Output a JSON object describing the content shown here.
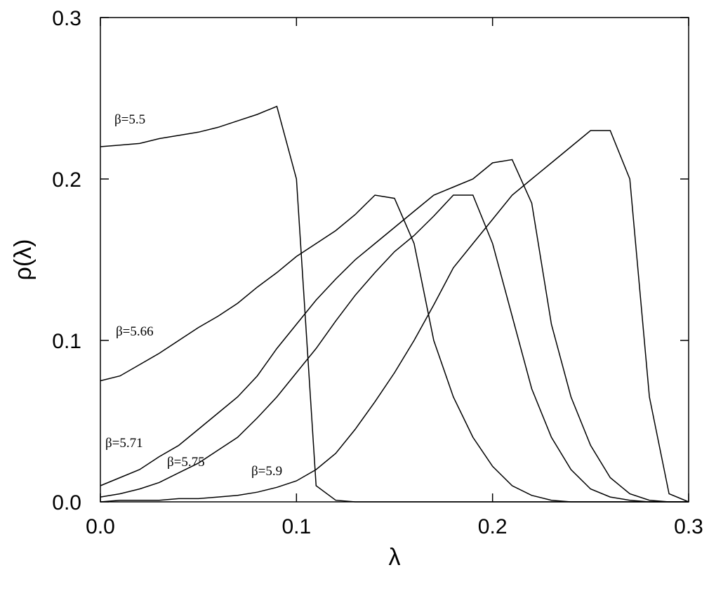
{
  "chart_data": {
    "type": "line",
    "x_label": "λ",
    "y_label": "ρ(λ)",
    "x": [
      0,
      0.01,
      0.02,
      0.03,
      0.04,
      0.05,
      0.06,
      0.07,
      0.08,
      0.09,
      0.1,
      0.11,
      0.12,
      0.13,
      0.14,
      0.15,
      0.16,
      0.17,
      0.18,
      0.19,
      0.2,
      0.21,
      0.22,
      0.23,
      0.24,
      0.25,
      0.26,
      0.27,
      0.28,
      0.29,
      0.3
    ],
    "xlim": [
      0,
      0.3
    ],
    "ylim": [
      0,
      0.3
    ],
    "xticks": [
      {
        "value": 0,
        "label": "0.0"
      },
      0.1,
      0.2,
      0.3
    ],
    "yticks": [
      {
        "value": 0,
        "label": "0.0"
      },
      0.1,
      0.2,
      0.3
    ],
    "series": [
      {
        "name": "β=5.5",
        "color": "#000000",
        "values": [
          0.22,
          0.221,
          0.222,
          0.225,
          0.227,
          0.229,
          0.232,
          0.236,
          0.24,
          0.245,
          0.2,
          0.01,
          0.001,
          0,
          0,
          0,
          0,
          0,
          0,
          0,
          0,
          0,
          0,
          0,
          0,
          0,
          0,
          0,
          0,
          0,
          0
        ]
      },
      {
        "name": "β=5.66",
        "color": "#000000",
        "values": [
          0.075,
          0.078,
          0.085,
          0.092,
          0.1,
          0.108,
          0.115,
          0.123,
          0.133,
          0.142,
          0.152,
          0.16,
          0.168,
          0.178,
          0.19,
          0.188,
          0.16,
          0.1,
          0.065,
          0.04,
          0.022,
          0.01,
          0.004,
          0.001,
          0,
          0,
          0,
          0,
          0,
          0,
          0
        ]
      },
      {
        "name": "β=5.71",
        "color": "#000000",
        "values": [
          0.01,
          0.015,
          0.02,
          0.028,
          0.035,
          0.045,
          0.055,
          0.065,
          0.078,
          0.095,
          0.11,
          0.125,
          0.138,
          0.15,
          0.16,
          0.17,
          0.18,
          0.19,
          0.195,
          0.2,
          0.21,
          0.212,
          0.185,
          0.11,
          0.065,
          0.035,
          0.015,
          0.005,
          0.001,
          0,
          0
        ]
      },
      {
        "name": "β=5.75",
        "color": "#000000",
        "values": [
          0.003,
          0.005,
          0.008,
          0.012,
          0.018,
          0.024,
          0.032,
          0.04,
          0.052,
          0.065,
          0.08,
          0.095,
          0.112,
          0.128,
          0.142,
          0.155,
          0.165,
          0.177,
          0.19,
          0.19,
          0.16,
          0.115,
          0.07,
          0.04,
          0.02,
          0.008,
          0.003,
          0.001,
          0,
          0,
          0
        ]
      },
      {
        "name": "β=5.9",
        "color": "#000000",
        "values": [
          0,
          0.001,
          0.001,
          0.001,
          0.002,
          0.002,
          0.003,
          0.004,
          0.006,
          0.009,
          0.013,
          0.02,
          0.03,
          0.045,
          0.062,
          0.08,
          0.1,
          0.122,
          0.145,
          0.16,
          0.175,
          0.19,
          0.2,
          0.21,
          0.22,
          0.23,
          0.23,
          0.2,
          0.065,
          0.005,
          0
        ]
      }
    ]
  }
}
